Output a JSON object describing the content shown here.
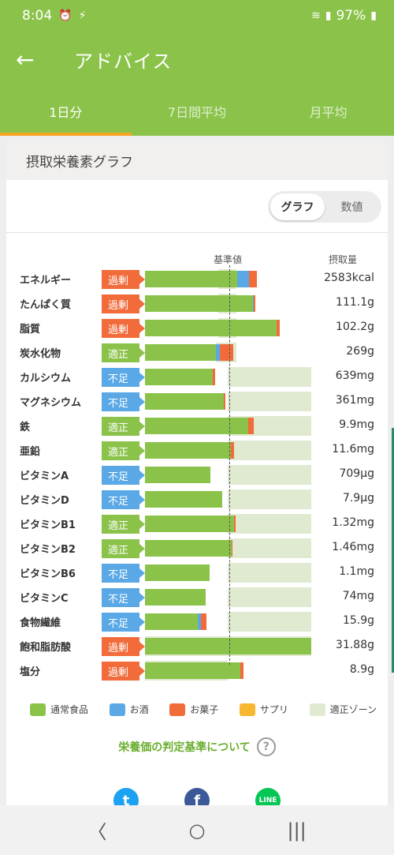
{
  "status_bar": {
    "time": "8:04",
    "battery": "97%"
  },
  "app_bar": {
    "title": "アドバイス"
  },
  "tabs": [
    {
      "label": "1日分",
      "active": true
    },
    {
      "label": "7日間平均",
      "active": false
    },
    {
      "label": "月平均",
      "active": false
    }
  ],
  "card": {
    "title": "摂取栄養素グラフ",
    "toggle": {
      "graph": "グラフ",
      "numeric": "数値"
    },
    "col_reference": "基準値",
    "col_intake": "摂取量"
  },
  "badge_colors": {
    "過剰": "#f26b3a",
    "適正": "#8bc34a",
    "不足": "#5aa9e6"
  },
  "nutrients": [
    {
      "name": "エネルギー",
      "status": "過剰",
      "value": "2583kcal"
    },
    {
      "name": "たんぱく質",
      "status": "過剰",
      "value": "111.1g"
    },
    {
      "name": "脂質",
      "status": "過剰",
      "value": "102.2g"
    },
    {
      "name": "炭水化物",
      "status": "適正",
      "value": "269g"
    },
    {
      "name": "カルシウム",
      "status": "不足",
      "value": "639mg"
    },
    {
      "name": "マグネシウム",
      "status": "不足",
      "value": "361mg"
    },
    {
      "name": "鉄",
      "status": "適正",
      "value": "9.9mg"
    },
    {
      "name": "亜鉛",
      "status": "適正",
      "value": "11.6mg"
    },
    {
      "name": "ビタミンA",
      "status": "不足",
      "value": "709µg"
    },
    {
      "name": "ビタミンD",
      "status": "不足",
      "value": "7.9µg"
    },
    {
      "name": "ビタミンB1",
      "status": "適正",
      "value": "1.32mg"
    },
    {
      "name": "ビタミンB2",
      "status": "適正",
      "value": "1.46mg"
    },
    {
      "name": "ビタミンB6",
      "status": "不足",
      "value": "1.1mg"
    },
    {
      "name": "ビタミンC",
      "status": "不足",
      "value": "74mg"
    },
    {
      "name": "食物繊維",
      "status": "不足",
      "value": "15.9g"
    },
    {
      "name": "飽和脂肪酸",
      "status": "過剰",
      "value": "31.88g"
    },
    {
      "name": "塩分",
      "status": "過剰",
      "value": "8.9g"
    }
  ],
  "chart_data": {
    "type": "bar",
    "stacked": true,
    "horizontal": true,
    "unit": "% of reference value",
    "reference_value": 100,
    "xlim": [
      0,
      202
    ],
    "categories": [
      "エネルギー",
      "たんぱく質",
      "脂質",
      "炭水化物",
      "カルシウム",
      "マグネシウム",
      "鉄",
      "亜鉛",
      "ビタミンA",
      "ビタミンD",
      "ビタミンB1",
      "ビタミンB2",
      "ビタミンB6",
      "ビタミンC",
      "食物繊維",
      "飽和脂肪酸",
      "塩分"
    ],
    "series": [
      {
        "name": "通常食品",
        "color": "#8bc34a",
        "values": [
          111,
          130,
          158,
          85,
          82,
          95,
          124,
          103,
          79,
          93,
          107,
          104,
          78,
          73,
          64,
          200,
          115
        ]
      },
      {
        "name": "お酒",
        "color": "#5aa9e6",
        "values": [
          14,
          1,
          0,
          5,
          0,
          0,
          0,
          0,
          0,
          0,
          0,
          0,
          0,
          0,
          3,
          0,
          0
        ]
      },
      {
        "name": "お菓子",
        "color": "#f26b3a",
        "values": [
          10,
          2,
          4,
          16,
          2,
          2,
          7,
          4,
          0,
          0,
          2,
          1,
          0,
          0,
          7,
          0,
          4
        ]
      },
      {
        "name": "サプリ",
        "color": "#f7b731",
        "values": [
          0,
          0,
          0,
          0,
          0,
          0,
          0,
          0,
          0,
          0,
          0,
          0,
          0,
          0,
          0,
          0,
          0
        ]
      }
    ],
    "zones": [
      [
        88,
        110
      ],
      [
        88,
        110
      ],
      [
        88,
        110
      ],
      [
        85,
        110
      ],
      [
        100,
        200
      ],
      [
        100,
        200
      ],
      [
        100,
        200
      ],
      [
        100,
        200
      ],
      [
        100,
        200
      ],
      [
        100,
        200
      ],
      [
        100,
        200
      ],
      [
        100,
        200
      ],
      [
        100,
        200
      ],
      [
        100,
        200
      ],
      [
        100,
        200
      ],
      [
        0,
        200
      ],
      [
        0,
        100
      ]
    ],
    "zone_color": "#dfead0",
    "legend": [
      {
        "label": "通常食品",
        "color": "#8bc34a"
      },
      {
        "label": "お酒",
        "color": "#5aa9e6"
      },
      {
        "label": "お菓子",
        "color": "#f26b3a"
      },
      {
        "label": "サプリ",
        "color": "#f7b731"
      },
      {
        "label": "適正ゾーン",
        "color": "#dfead0"
      }
    ]
  },
  "criteria_link": "栄養価の判定基準について",
  "social": [
    {
      "icon": "twitter-icon",
      "color": "#1da1f2",
      "glyph": "t"
    },
    {
      "icon": "facebook-icon",
      "color": "#3b5998",
      "glyph": "f"
    },
    {
      "icon": "line-icon",
      "color": "#06c755",
      "glyph": "LINE"
    }
  ]
}
